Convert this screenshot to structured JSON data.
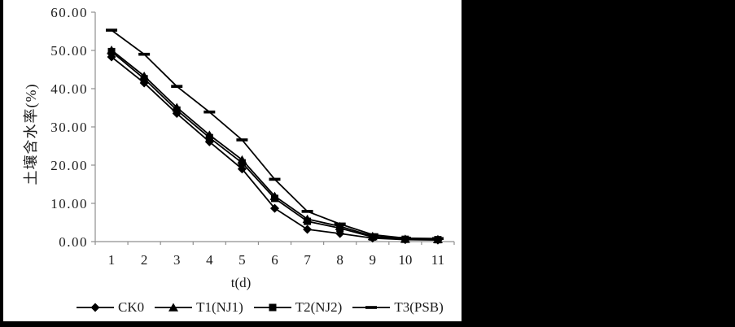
{
  "figure": {
    "background_color": "#000000",
    "panel_color": "#ffffff",
    "series_color": "#000000",
    "axis_color": "#8f8f8f",
    "text_color": "#1a1a1a"
  },
  "chart_data": {
    "type": "line",
    "title": "",
    "xlabel": "t(d)",
    "ylabel": "土壤含水率(%)",
    "x": [
      1,
      2,
      3,
      4,
      5,
      6,
      7,
      8,
      9,
      10,
      11
    ],
    "x_tick_labels": [
      "1",
      "2",
      "3",
      "4",
      "5",
      "6",
      "7",
      "8",
      "9",
      "10",
      "11"
    ],
    "y_tick_values": [
      0,
      10,
      20,
      30,
      40,
      50,
      60
    ],
    "y_tick_labels": [
      "0.00",
      "10.00",
      "20.00",
      "30.00",
      "40.00",
      "50.00",
      "60.00"
    ],
    "ylim": [
      0,
      60
    ],
    "grid": false,
    "legend_position": "bottom",
    "series": [
      {
        "name": "CK0",
        "marker": "diamond",
        "values": [
          48.3,
          41.5,
          33.5,
          26.1,
          19.0,
          8.7,
          3.2,
          2.1,
          0.9,
          0.5,
          0.4
        ]
      },
      {
        "name": "T1(NJ1)",
        "marker": "triangle",
        "values": [
          50.1,
          43.3,
          35.1,
          27.9,
          21.4,
          11.9,
          5.9,
          4.0,
          1.4,
          0.7,
          0.6
        ]
      },
      {
        "name": "T2(NJ2)",
        "marker": "square",
        "values": [
          49.7,
          42.6,
          34.4,
          27.2,
          20.6,
          11.3,
          5.3,
          3.5,
          1.2,
          0.6,
          0.5
        ]
      },
      {
        "name": "T3(PSB)",
        "marker": "dash",
        "values": [
          55.3,
          49.0,
          40.6,
          33.9,
          26.6,
          16.3,
          7.9,
          4.6,
          1.8,
          0.9,
          0.8
        ]
      }
    ]
  }
}
